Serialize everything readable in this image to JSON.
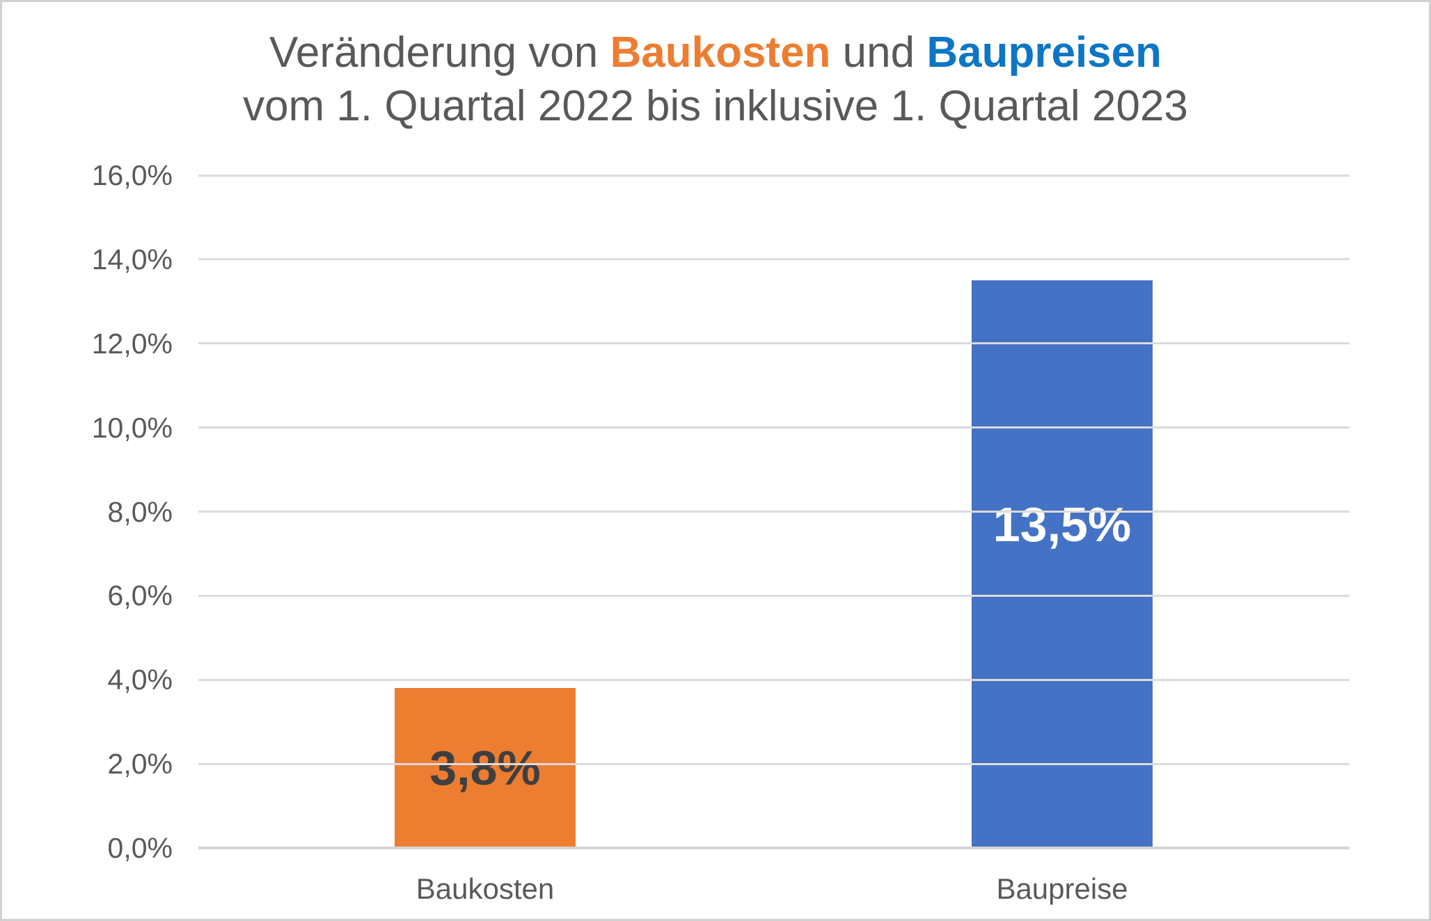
{
  "title": {
    "line1_part1": "Veränderung von ",
    "line1_baukosten": "Baukosten",
    "line1_part2": " und ",
    "line1_baupreisen": "Baupreisen",
    "line2": "vom 1. Quartal 2022 bis inklusive 1. Quartal 2023"
  },
  "colors": {
    "title_text": "#595959",
    "title_baukosten_accent": "#ED7D31",
    "title_baupreisen_accent": "#0D76C4",
    "bar_baukosten": "#ED7D31",
    "bar_baupreise": "#4472C4",
    "value_label_baukosten": "#3F3F3F",
    "value_label_baupreise": "#FFFFFF",
    "axis_text": "#595959",
    "gridline": "#DBDBDB",
    "axis_line": "#D4D4D4",
    "page_border": "#D0D0D0"
  },
  "chart_data": {
    "type": "bar",
    "title": "Veränderung von Baukosten und Baupreisen vom 1. Quartal 2022 bis inklusive 1. Quartal 2023",
    "categories": [
      "Baukosten",
      "Baupreise"
    ],
    "values": [
      3.8,
      13.5
    ],
    "value_labels": [
      "3,8%",
      "13,5%"
    ],
    "bar_colors": [
      "#ED7D31",
      "#4472C4"
    ],
    "xlabel": "",
    "ylabel": "",
    "ylim": [
      0,
      16
    ],
    "y_tick_step": 2,
    "y_tick_labels": [
      "16,0%",
      "14,0%",
      "12,0%",
      "10,0%",
      "8,0%",
      "6,0%",
      "4,0%",
      "2,0%",
      "0,0%"
    ],
    "grid": true,
    "legend": false
  }
}
